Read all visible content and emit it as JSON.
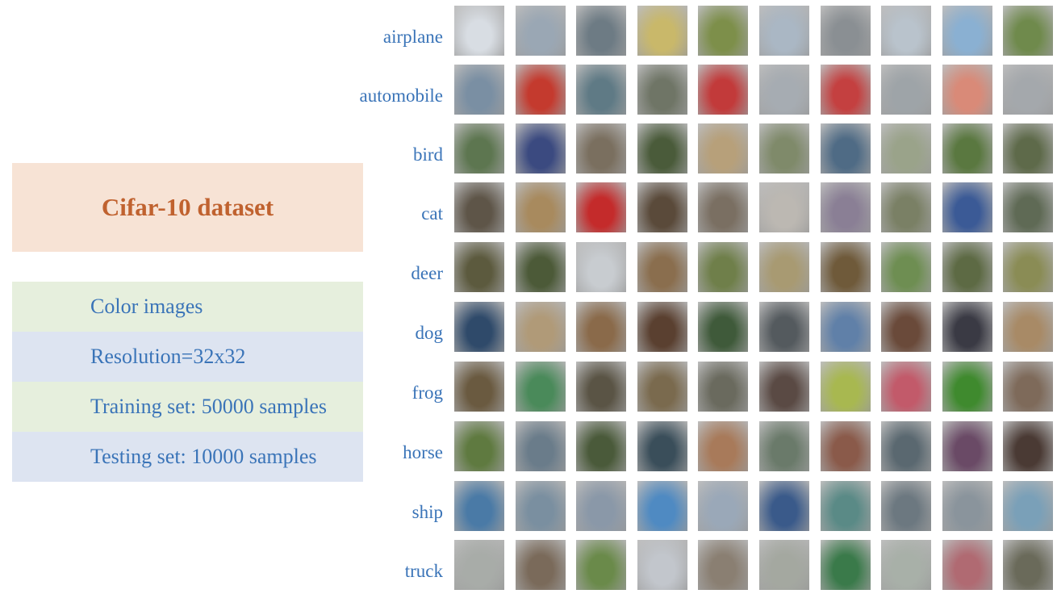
{
  "title": "Cifar-10 dataset",
  "info": [
    "Color images",
    "Resolution=32x32",
    "Training set: 50000 samples",
    "Testing set: 10000 samples"
  ],
  "classes": [
    "airplane",
    "automobile",
    "bird",
    "cat",
    "deer",
    "dog",
    "frog",
    "horse",
    "ship",
    "truck"
  ],
  "images_per_class": 10,
  "colors": {
    "title_bg": "#f7e3d5",
    "title_text": "#c0622f",
    "label_text": "#3a74b8",
    "row_green": "#e6efdd",
    "row_blue": "#dde4f1"
  },
  "thumb_palettes": {
    "airplane": [
      "#d8dde3",
      "#9aa7b4",
      "#6d7b84",
      "#c9b86a",
      "#7d8f4a",
      "#aab7c4",
      "#8a8f93",
      "#b9c3cc",
      "#8ab0d2",
      "#6f8a4c"
    ],
    "automobile": [
      "#7a8fa3",
      "#c43a2e",
      "#5f7a85",
      "#6f7566",
      "#c23a3a",
      "#a6acb2",
      "#c44040",
      "#9ea4a8",
      "#d98a78",
      "#a4a8ac"
    ],
    "bird": [
      "#5d7650",
      "#3b4a80",
      "#7a6f5f",
      "#4a5b3a",
      "#b7a07a",
      "#7f8a6a",
      "#4f6b85",
      "#9aa38a",
      "#5a7840",
      "#5e6a4a"
    ],
    "cat": [
      "#5e5548",
      "#a88a5e",
      "#c42b2b",
      "#5a4a3a",
      "#7a6f62",
      "#bcb8b2",
      "#8a7f95",
      "#7a8065",
      "#3b5a96",
      "#5f6a55"
    ],
    "deer": [
      "#5c5a3e",
      "#4c5a38",
      "#c8ccd0",
      "#8a6e4e",
      "#6f7f4a",
      "#a89a72",
      "#6f5a3a",
      "#6e8e52",
      "#5d6a44",
      "#8a8c55"
    ],
    "dog": [
      "#2f4a6a",
      "#b09a78",
      "#8a6a4a",
      "#5a4030",
      "#3f5a3a",
      "#545a5e",
      "#6080a8",
      "#6a4a3a",
      "#3a3a44",
      "#a88a66"
    ],
    "frog": [
      "#6a5a40",
      "#4a8a5a",
      "#5a5445",
      "#7a6a4e",
      "#6a6a5e",
      "#5a4a44",
      "#a8b850",
      "#c25a6a",
      "#3f8a2e",
      "#7e6a5a"
    ],
    "horse": [
      "#5f7a40",
      "#6a7c8a",
      "#4a5a3a",
      "#3a4e5a",
      "#a87a5a",
      "#6a7a6a",
      "#8a5a4a",
      "#5a6870",
      "#6a4a66",
      "#4a3a34"
    ],
    "ship": [
      "#4a7aa6",
      "#7a8fa0",
      "#8a98a8",
      "#4f8ac2",
      "#9aa8b8",
      "#3a5a8a",
      "#5a8a86",
      "#6c7880",
      "#8a949c",
      "#7aa0b8"
    ],
    "truck": [
      "#a8aca8",
      "#7a6a5a",
      "#6a8a4a",
      "#c2c6cc",
      "#8a7f72",
      "#a4a8a0",
      "#3a7a4a",
      "#a8b0a8",
      "#b06a72",
      "#6a6a5a"
    ]
  }
}
